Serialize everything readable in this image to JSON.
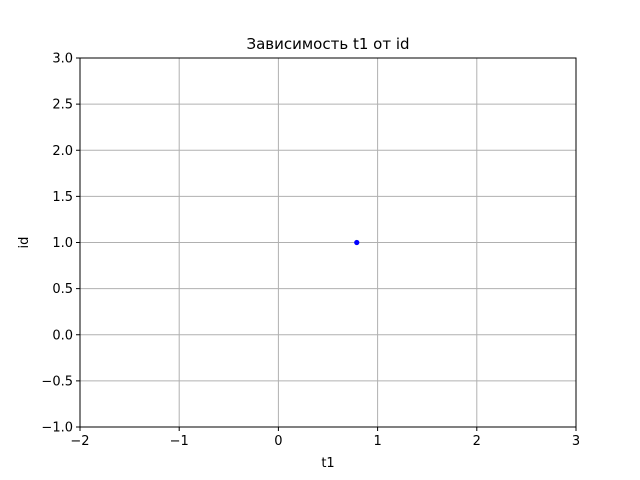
{
  "chart_data": {
    "type": "scatter",
    "title": "Зависимость t1 от id",
    "xlabel": "t1",
    "ylabel": "id",
    "xlim": [
      -2,
      3
    ],
    "ylim": [
      -1,
      3
    ],
    "xticks": [
      -2,
      -1,
      0,
      1,
      2,
      3
    ],
    "yticks": [
      -1.0,
      -0.5,
      0.0,
      0.5,
      1.0,
      1.5,
      2.0,
      2.5,
      3.0
    ],
    "xtick_labels": [
      "−2",
      "−1",
      "0",
      "1",
      "2",
      "3"
    ],
    "ytick_labels": [
      "−1.0",
      "−0.5",
      "0.0",
      "0.5",
      "1.0",
      "1.5",
      "2.0",
      "2.5",
      "3.0"
    ],
    "grid": true,
    "series": [
      {
        "color": "#0000ff",
        "points": [
          {
            "x": 0.79,
            "y": 1.0
          }
        ]
      }
    ]
  },
  "colors": {
    "grid": "#b0b0b0",
    "axes": "#000000",
    "marker": "#0000ff"
  }
}
